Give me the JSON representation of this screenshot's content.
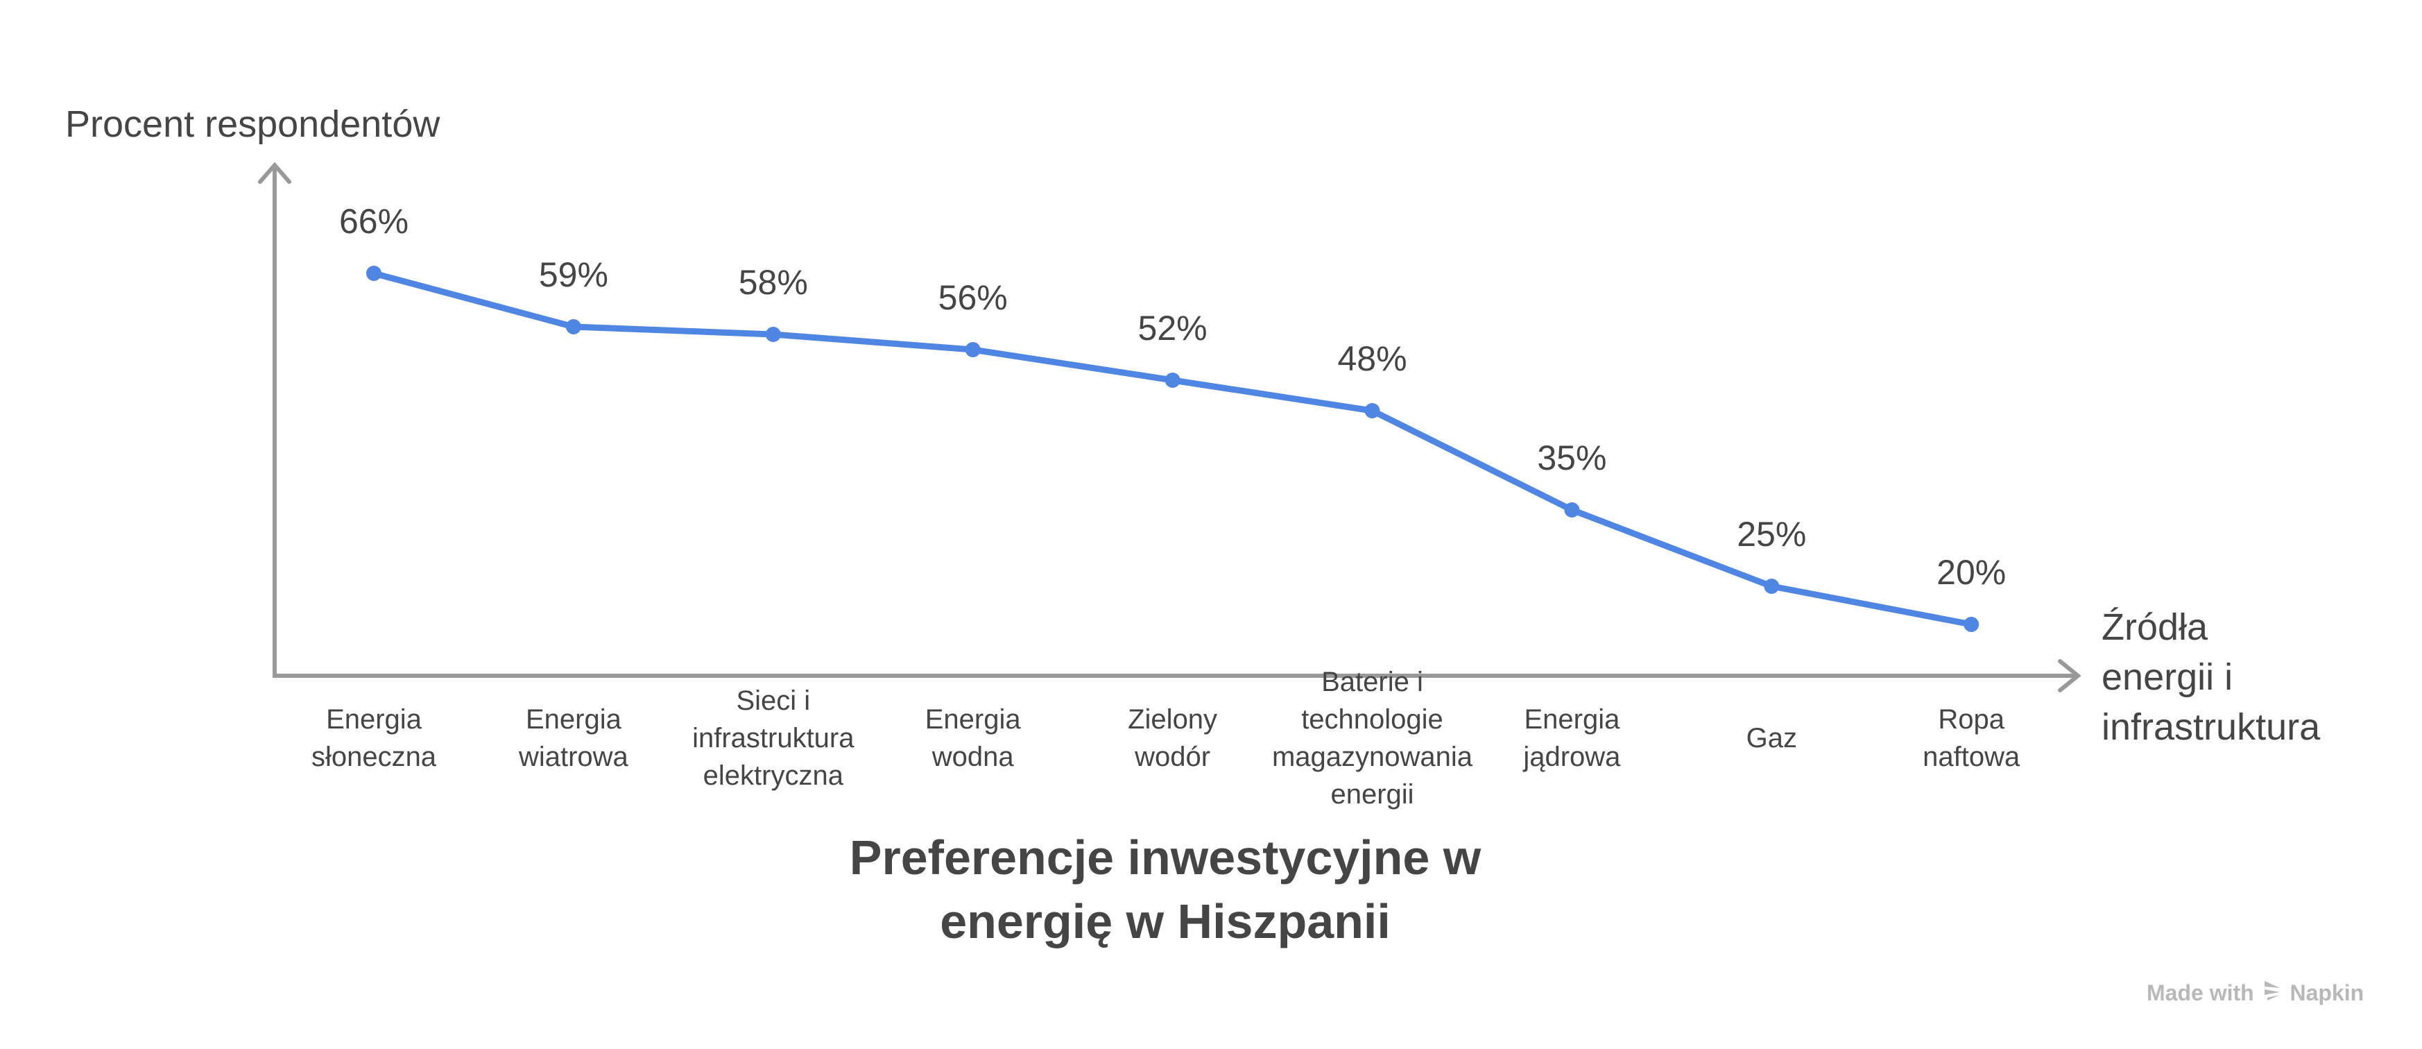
{
  "chart_data": {
    "type": "line",
    "title": "Preferencje inwestycyjne w\nenergię w Hiszpanii",
    "xlabel": "Źródła\nenergii i\ninfrastruktura",
    "ylabel": "Procent respondentów",
    "categories": [
      "Energia\nsłoneczna",
      "Energia\nwiatrowa",
      "Sieci i\ninfrastruktura\nelektryczna",
      "Energia\nwodna",
      "Zielony\nwodór",
      "Baterie i\ntechnologie\nmagazynowania\nenergii",
      "Energia\njądrowa",
      "Gaz",
      "Ropa\nnaftowa"
    ],
    "values": [
      66,
      59,
      58,
      56,
      52,
      48,
      35,
      25,
      20
    ],
    "data_labels": [
      "66%",
      "59%",
      "58%",
      "56%",
      "52%",
      "48%",
      "35%",
      "25%",
      "20%"
    ],
    "grid": false,
    "line_color": "#4F86E4",
    "axis_color": "#999999"
  },
  "watermark": {
    "text": "Made with",
    "brand": "Napkin"
  }
}
